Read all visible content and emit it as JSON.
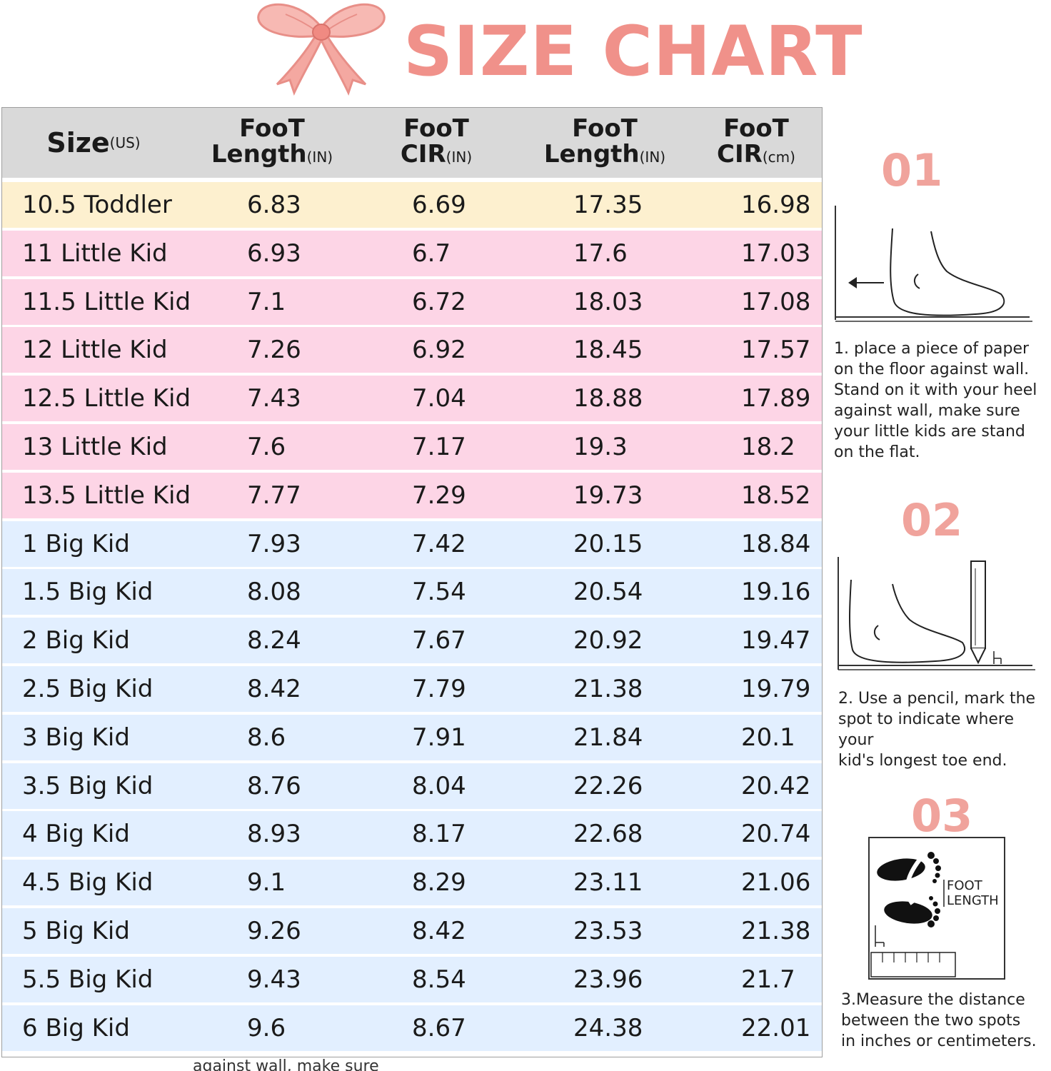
{
  "title": "SIZE CHART",
  "table": {
    "headers": [
      {
        "main": "Size",
        "unit": "(US)"
      },
      {
        "line1": "FooT",
        "line2": "Length",
        "unit": "(IN)"
      },
      {
        "line1": "FooT",
        "line2": "CIR",
        "unit": "(IN)"
      },
      {
        "line1": "FooT",
        "line2": "Length",
        "unit": "(IN)"
      },
      {
        "line1": "FooT",
        "line2": "CIR",
        "unit": "(cm)"
      }
    ],
    "rows": [
      {
        "size": "10.5 Toddler",
        "len_in": "6.83",
        "cir_in": "6.69",
        "len_cm": "17.35",
        "cir_cm": "16.98",
        "group": "toddler"
      },
      {
        "size": "11 Little Kid",
        "len_in": "6.93",
        "cir_in": "6.7",
        "len_cm": "17.6",
        "cir_cm": "17.03",
        "group": "little"
      },
      {
        "size": "11.5 Little Kid",
        "len_in": "7.1",
        "cir_in": "6.72",
        "len_cm": "18.03",
        "cir_cm": "17.08",
        "group": "little"
      },
      {
        "size": "12 Little Kid",
        "len_in": "7.26",
        "cir_in": "6.92",
        "len_cm": "18.45",
        "cir_cm": "17.57",
        "group": "little"
      },
      {
        "size": "12.5 Little Kid",
        "len_in": "7.43",
        "cir_in": "7.04",
        "len_cm": "18.88",
        "cir_cm": "17.89",
        "group": "little"
      },
      {
        "size": "13 Little Kid",
        "len_in": "7.6",
        "cir_in": "7.17",
        "len_cm": "19.3",
        "cir_cm": "18.2",
        "group": "little"
      },
      {
        "size": "13.5 Little Kid",
        "len_in": "7.77",
        "cir_in": "7.29",
        "len_cm": "19.73",
        "cir_cm": "18.52",
        "group": "little"
      },
      {
        "size": "1 Big Kid",
        "len_in": "7.93",
        "cir_in": "7.42",
        "len_cm": "20.15",
        "cir_cm": "18.84",
        "group": "big"
      },
      {
        "size": "1.5 Big Kid",
        "len_in": "8.08",
        "cir_in": "7.54",
        "len_cm": "20.54",
        "cir_cm": "19.16",
        "group": "big"
      },
      {
        "size": "2 Big Kid",
        "len_in": "8.24",
        "cir_in": "7.67",
        "len_cm": "20.92",
        "cir_cm": "19.47",
        "group": "big"
      },
      {
        "size": "2.5 Big Kid",
        "len_in": "8.42",
        "cir_in": "7.79",
        "len_cm": "21.38",
        "cir_cm": "19.79",
        "group": "big"
      },
      {
        "size": "3 Big Kid",
        "len_in": "8.6",
        "cir_in": "7.91",
        "len_cm": "21.84",
        "cir_cm": "20.1",
        "group": "big"
      },
      {
        "size": "3.5 Big Kid",
        "len_in": "8.76",
        "cir_in": "8.04",
        "len_cm": "22.26",
        "cir_cm": "20.42",
        "group": "big"
      },
      {
        "size": "4 Big Kid",
        "len_in": "8.93",
        "cir_in": "8.17",
        "len_cm": "22.68",
        "cir_cm": "20.74",
        "group": "big"
      },
      {
        "size": "4.5 Big Kid",
        "len_in": "9.1",
        "cir_in": "8.29",
        "len_cm": "23.11",
        "cir_cm": "21.06",
        "group": "big"
      },
      {
        "size": "5 Big Kid",
        "len_in": "9.26",
        "cir_in": "8.42",
        "len_cm": "23.53",
        "cir_cm": "21.38",
        "group": "big"
      },
      {
        "size": "5.5 Big Kid",
        "len_in": "9.43",
        "cir_in": "8.54",
        "len_cm": "23.96",
        "cir_cm": "21.7",
        "group": "big"
      },
      {
        "size": "6 Big Kid",
        "len_in": "9.6",
        "cir_in": "8.67",
        "len_cm": "24.38",
        "cir_cm": "22.01",
        "group": "big"
      }
    ]
  },
  "colors": {
    "toddler": "#fdf0cf",
    "little": "#fdd5e6",
    "big": "#e2efff",
    "header": "#d9d9d9",
    "accent": "#f0918a"
  },
  "steps": [
    {
      "num": "01",
      "lines": [
        "1. place a piece of paper",
        "on the floor against wall.",
        "Stand on it with your heel",
        "against wall, make sure",
        "your little kids are stand",
        "on the flat."
      ]
    },
    {
      "num": "02",
      "lines": [
        "2. Use a pencil, mark the",
        "spot to indicate where your",
        "kid's longest toe end."
      ]
    },
    {
      "num": "03",
      "lines": [
        "3.Measure the distance",
        "between the two spots",
        "in inches or centimeters."
      ]
    }
  ],
  "foot_length_label": [
    "FOOT",
    "LENGTH"
  ],
  "bottom_text": "against wall, make sure"
}
